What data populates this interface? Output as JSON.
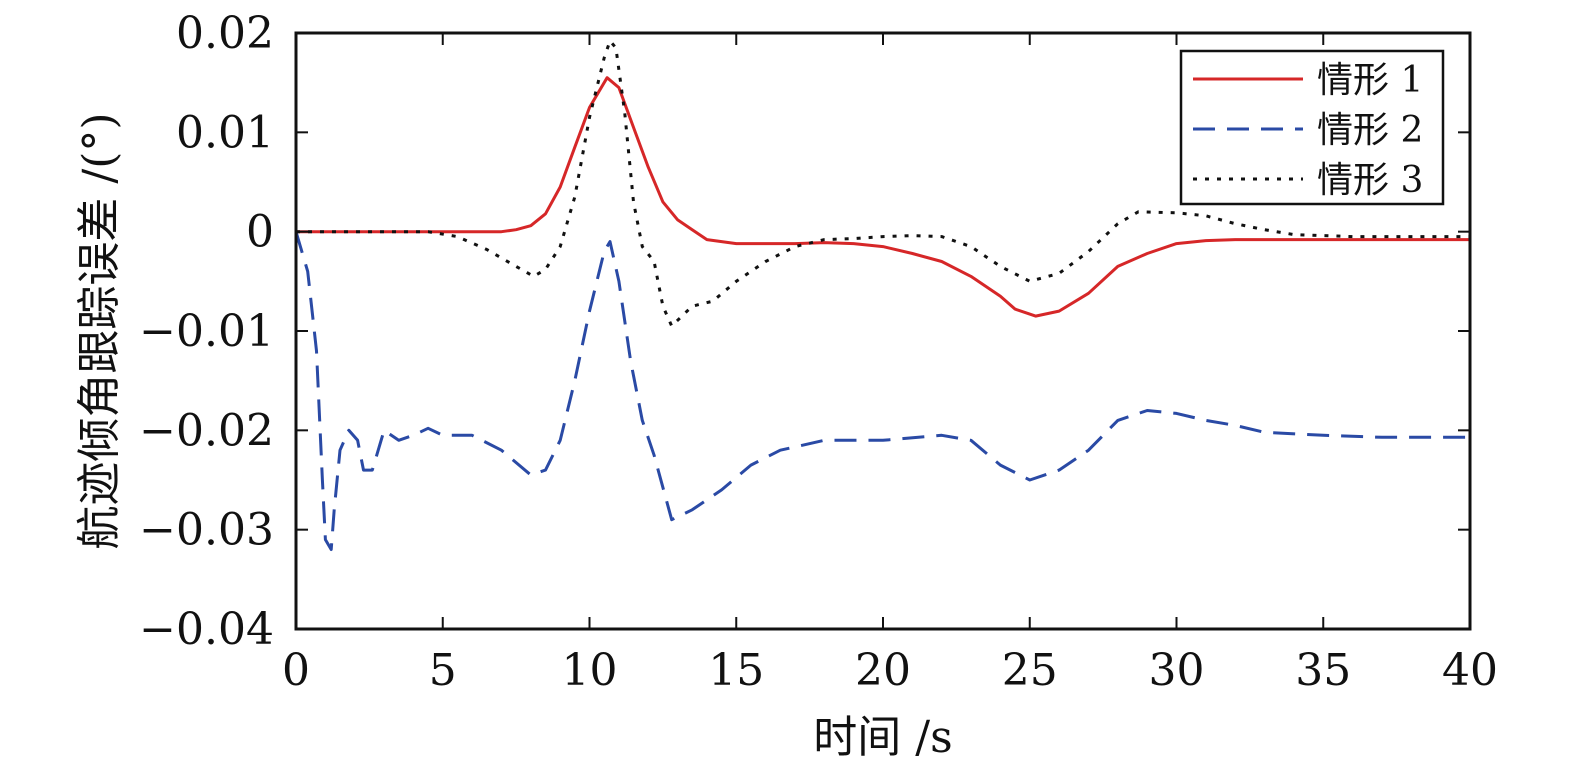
{
  "chart_data": {
    "type": "line",
    "title": "",
    "xlabel": "时间 /s",
    "ylabel": "航迹倾角跟踪误差 /(°)",
    "xlim": [
      0,
      40
    ],
    "ylim": [
      -0.04,
      0.02
    ],
    "xticks": [
      0,
      5,
      10,
      15,
      20,
      25,
      30,
      35,
      40
    ],
    "xtick_labels": [
      "0",
      "5",
      "10",
      "15",
      "20",
      "25",
      "30",
      "35",
      "40"
    ],
    "yticks": [
      0.02,
      0.01,
      0,
      -0.01,
      -0.02,
      -0.03,
      -0.04
    ],
    "ytick_labels": [
      "0.02",
      "0.01",
      "0",
      "−0.01",
      "−0.02",
      "−0.03",
      "−0.04"
    ],
    "grid": false,
    "legend_position": "top-right",
    "series": [
      {
        "name": "情形 1",
        "color": "#d62728",
        "style": "solid",
        "points": [
          [
            0,
            0
          ],
          [
            7,
            0
          ],
          [
            7.5,
            0.0002
          ],
          [
            8,
            0.0006
          ],
          [
            8.5,
            0.0018
          ],
          [
            9,
            0.0045
          ],
          [
            9.5,
            0.0085
          ],
          [
            10,
            0.0125
          ],
          [
            10.6,
            0.0155
          ],
          [
            11,
            0.0145
          ],
          [
            11.5,
            0.0105
          ],
          [
            12,
            0.0065
          ],
          [
            12.5,
            0.003
          ],
          [
            13,
            0.0012
          ],
          [
            13.5,
            0.0002
          ],
          [
            14,
            -0.0008
          ],
          [
            15,
            -0.0012
          ],
          [
            17,
            -0.0012
          ],
          [
            18,
            -0.0011
          ],
          [
            19,
            -0.0012
          ],
          [
            20,
            -0.0015
          ],
          [
            21,
            -0.0022
          ],
          [
            22,
            -0.003
          ],
          [
            23,
            -0.0045
          ],
          [
            24,
            -0.0065
          ],
          [
            24.5,
            -0.0078
          ],
          [
            25.2,
            -0.0085
          ],
          [
            26,
            -0.008
          ],
          [
            27,
            -0.0062
          ],
          [
            28,
            -0.0035
          ],
          [
            29,
            -0.0022
          ],
          [
            30,
            -0.0012
          ],
          [
            31,
            -0.0009
          ],
          [
            32,
            -0.0008
          ],
          [
            40,
            -0.0008
          ]
        ]
      },
      {
        "name": "情形 2",
        "color": "#2a4aa5",
        "style": "dashed",
        "points": [
          [
            0,
            0
          ],
          [
            0.4,
            -0.004
          ],
          [
            0.7,
            -0.012
          ],
          [
            0.9,
            -0.025
          ],
          [
            1.0,
            -0.031
          ],
          [
            1.2,
            -0.032
          ],
          [
            1.3,
            -0.028
          ],
          [
            1.5,
            -0.022
          ],
          [
            1.8,
            -0.02
          ],
          [
            2.1,
            -0.021
          ],
          [
            2.3,
            -0.024
          ],
          [
            2.6,
            -0.024
          ],
          [
            3.0,
            -0.02
          ],
          [
            3.5,
            -0.021
          ],
          [
            4,
            -0.0205
          ],
          [
            4.5,
            -0.0198
          ],
          [
            5,
            -0.0205
          ],
          [
            6,
            -0.0205
          ],
          [
            7,
            -0.022
          ],
          [
            8,
            -0.0245
          ],
          [
            8.5,
            -0.024
          ],
          [
            9,
            -0.021
          ],
          [
            9.5,
            -0.015
          ],
          [
            10,
            -0.008
          ],
          [
            10.5,
            -0.002
          ],
          [
            10.7,
            -0.001
          ],
          [
            11,
            -0.005
          ],
          [
            11.4,
            -0.013
          ],
          [
            11.8,
            -0.019
          ],
          [
            12.2,
            -0.0225
          ],
          [
            12.8,
            -0.029
          ],
          [
            13.5,
            -0.028
          ],
          [
            14.5,
            -0.026
          ],
          [
            15.5,
            -0.0235
          ],
          [
            16.5,
            -0.022
          ],
          [
            18,
            -0.021
          ],
          [
            20,
            -0.021
          ],
          [
            22,
            -0.0205
          ],
          [
            23,
            -0.021
          ],
          [
            24,
            -0.0235
          ],
          [
            25,
            -0.025
          ],
          [
            26,
            -0.024
          ],
          [
            27,
            -0.022
          ],
          [
            28,
            -0.019
          ],
          [
            29,
            -0.018
          ],
          [
            30,
            -0.0183
          ],
          [
            31,
            -0.019
          ],
          [
            32,
            -0.0195
          ],
          [
            33,
            -0.0202
          ],
          [
            35,
            -0.0205
          ],
          [
            37,
            -0.0207
          ],
          [
            40,
            -0.0207
          ]
        ]
      },
      {
        "name": "情形 3",
        "color": "#111111",
        "style": "dotted",
        "points": [
          [
            0,
            0
          ],
          [
            3,
            0
          ],
          [
            4.5,
            0
          ],
          [
            5.5,
            -0.0005
          ],
          [
            6.5,
            -0.0018
          ],
          [
            7.5,
            -0.0035
          ],
          [
            8.1,
            -0.0045
          ],
          [
            8.5,
            -0.0038
          ],
          [
            9,
            -0.0015
          ],
          [
            9.5,
            0.0035
          ],
          [
            10,
            0.0115
          ],
          [
            10.5,
            0.0175
          ],
          [
            10.7,
            0.0192
          ],
          [
            10.9,
            0.0185
          ],
          [
            11.2,
            0.012
          ],
          [
            11.5,
            0.003
          ],
          [
            11.8,
            -0.0015
          ],
          [
            12.2,
            -0.003
          ],
          [
            12.5,
            -0.0075
          ],
          [
            12.8,
            -0.0095
          ],
          [
            13.5,
            -0.0075
          ],
          [
            14.2,
            -0.007
          ],
          [
            15,
            -0.005
          ],
          [
            16,
            -0.003
          ],
          [
            17,
            -0.0015
          ],
          [
            18,
            -0.0008
          ],
          [
            19,
            -0.0007
          ],
          [
            20,
            -0.0005
          ],
          [
            21,
            -0.0004
          ],
          [
            22,
            -0.0005
          ],
          [
            23,
            -0.0015
          ],
          [
            24,
            -0.0035
          ],
          [
            25,
            -0.005
          ],
          [
            26,
            -0.0042
          ],
          [
            27,
            -0.002
          ],
          [
            28,
            0.0008
          ],
          [
            28.7,
            0.002
          ],
          [
            30,
            0.0019
          ],
          [
            31,
            0.0016
          ],
          [
            32,
            0.0008
          ],
          [
            33,
            0.0002
          ],
          [
            34,
            -0.0003
          ],
          [
            36,
            -0.0005
          ],
          [
            40,
            -0.0005
          ]
        ]
      }
    ]
  }
}
